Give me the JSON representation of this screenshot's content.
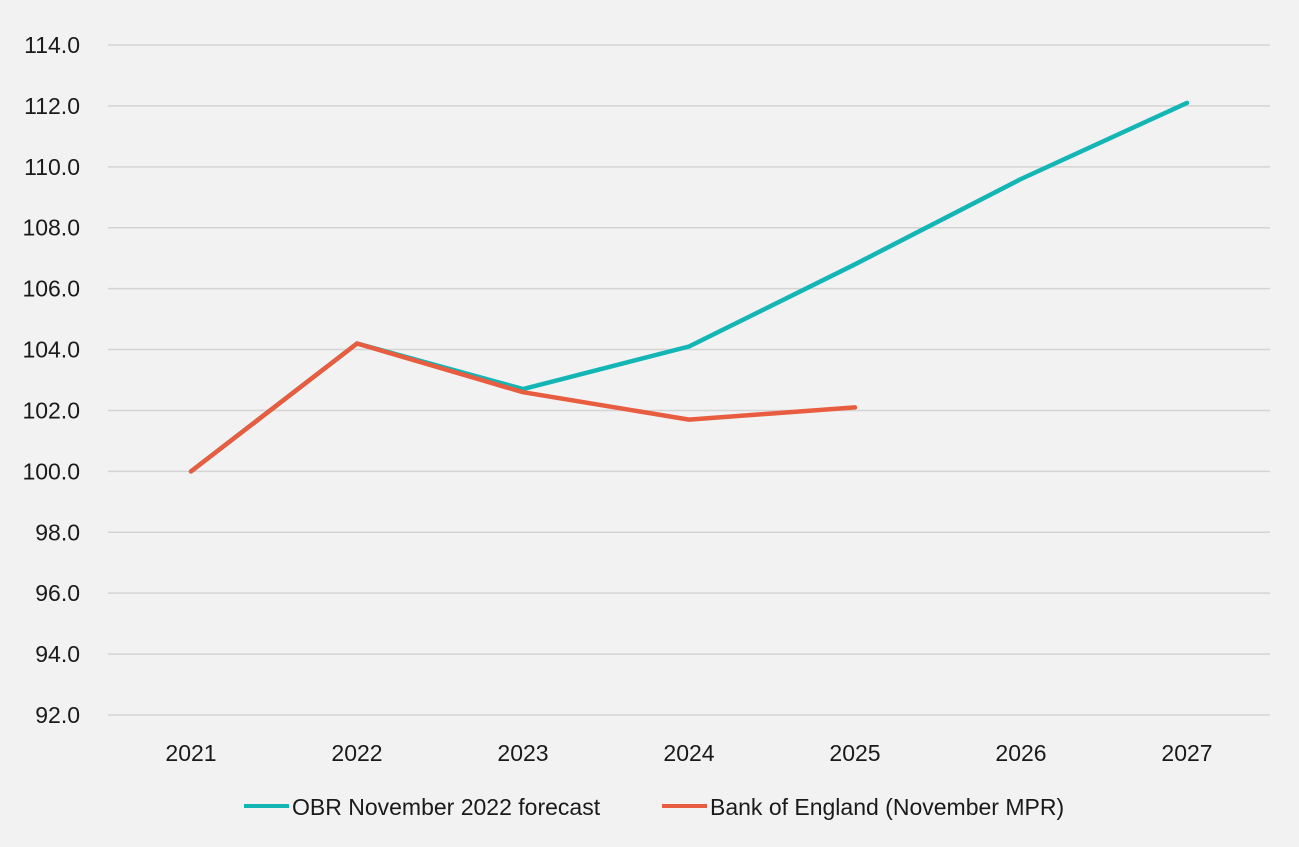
{
  "chart_data": {
    "type": "line",
    "title": "",
    "xlabel": "",
    "ylabel": "",
    "categories": [
      "2021",
      "2022",
      "2023",
      "2024",
      "2025",
      "2026",
      "2027"
    ],
    "ylim": [
      92.0,
      114.0
    ],
    "y_ticks": [
      "92.0",
      "94.0",
      "96.0",
      "98.0",
      "100.0",
      "102.0",
      "104.0",
      "106.0",
      "108.0",
      "110.0",
      "112.0",
      "114.0"
    ],
    "grid": true,
    "legend_position": "bottom",
    "series": [
      {
        "name": "OBR November 2022 forecast",
        "color": "#13b5b5",
        "values": [
          100.0,
          104.2,
          102.7,
          104.1,
          106.8,
          109.6,
          112.1
        ]
      },
      {
        "name": "Bank of England (November MPR)",
        "color": "#e85c3f",
        "values": [
          100.0,
          104.2,
          102.6,
          101.7,
          102.1,
          null,
          null
        ]
      }
    ]
  }
}
